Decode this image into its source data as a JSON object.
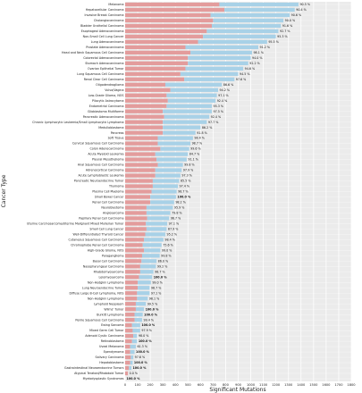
{
  "chart_data": {
    "type": "bar",
    "stacked": true,
    "orientation": "horizontal",
    "xlabel": "Significant Mutations",
    "ylabel": "Cancer Type",
    "xlim": [
      0,
      1800
    ],
    "xticks": [
      0,
      100,
      200,
      300,
      400,
      500,
      600,
      700,
      800,
      900,
      1000,
      1100,
      1200,
      1300,
      1400,
      1500,
      1600,
      1700,
      1800
    ],
    "grid": true,
    "series_colors": [
      "#e39c9c",
      "#a8d1e7"
    ],
    "categories": [
      "Melanoma",
      "Hepatocellular Carcinoma",
      "Invasive Breast Carcinoma",
      "Cholangiocarcinoma",
      "Bladder Urothelial Carcinoma",
      "Esophageal Adenocarcinoma",
      "Non-Small Cell Lung Cancer",
      "Lung Adenocarcinoma",
      "Prostate Adenocarcinoma",
      "Head and Neck Squamous Cell Carcinoma",
      "Colorectal Adenocarcinoma",
      "Stomach Adenocarcinoma",
      "Ovarian Epithelial Tumor",
      "Lung Squamous Cell Carcinoma",
      "Renal Clear Cell Carcinoma",
      "Oligodendroglioma",
      "Vulva/Vagina",
      "Low-Grade Glioma, NOS",
      "Pilocytic Astrocytoma",
      "Endometrial Carcinoma",
      "Glioblastoma Multiforme",
      "Pancreatic Adenocarcinoma",
      "Chronic Lymphocytic Leukemia/Small Lymphocytic Lymphoma",
      "Medulloblastoma",
      "Pancreas",
      "Soft Tissue",
      "Cervical Squamous Cell Carcinoma",
      "Colon Adenocarcinoma",
      "Acute Myeloid Leukemia",
      "Pleural Mesothelioma",
      "Anal Squamous Cell Carcinoma",
      "Adrenocortical Carcinoma",
      "Acute Lymphoblastic Leukemia",
      "Pancreatic Neuroendocrine Tumor",
      "Thymoma",
      "Plasma Cell Myeloma",
      "Small Bowel Cancer",
      "Renal Cell Carcinoma",
      "Neuroblastoma",
      "Angiosarcoma",
      "Papillary Renal Cell Carcinoma",
      "Uterine Carcinosarcoma/Uterine Malignant Mixed Mullerian Tumor",
      "Small Cell Lung Cancer",
      "Well-Differentiated Thyroid Cancer",
      "Cutaneous Squamous Cell Carcinoma",
      "Chromophobe Renal Cell Carcinoma",
      "High-Grade Glioma, NOS",
      "Paraganglioma",
      "Basal Cell Carcinoma",
      "Nasopharyngeal Carcinoma",
      "Rhabdomyosarcoma",
      "Leiomyosarcoma",
      "Non-Hodgkin Lymphoma",
      "Lung Neuroendocrine Tumor",
      "Diffuse Large B-Cell Lymphoma, NOS",
      "Non-Hodgkin Lymphoma",
      "Lymphoid Neoplasm",
      "Wilms' Tumor",
      "Burkitt Lymphoma",
      "Penile Squamous Cell Carcinoma",
      "Ewing Sarcoma",
      "Mixed Germ Cell Tumor",
      "Adenoid Cystic Carcinoma",
      "Retinoblastoma",
      "Uveal Melanoma",
      "Ependymoma",
      "Salivary Carcinoma",
      "Hepatoblastoma",
      "Gastrointestinal Neuroendocrine Tumors",
      "Atypical Teratoid/Rhabdoid Tumor",
      "Myelodysplastic Syndromes"
    ],
    "series": [
      {
        "values": [
          750,
          790,
          680,
          700,
          690,
          650,
          620,
          580,
          480,
          520,
          500,
          500,
          480,
          440,
          470,
          320,
          360,
          330,
          340,
          330,
          300,
          310,
          300,
          300,
          300,
          260,
          260,
          280,
          240,
          250,
          260,
          240,
          240,
          220,
          220,
          210,
          200,
          200,
          170,
          170,
          175,
          165,
          170,
          160,
          150,
          140,
          150,
          135,
          130,
          120,
          120,
          110,
          100,
          100,
          95,
          95,
          85,
          85,
          75,
          75,
          55,
          60,
          65,
          55,
          40,
          40,
          45,
          40,
          30,
          22,
          0
        ]
      },
      {
        "values": [
          630,
          560,
          630,
          560,
          550,
          570,
          580,
          550,
          580,
          490,
          500,
          480,
          460,
          460,
          400,
          450,
          380,
          400,
          380,
          360,
          390,
          360,
          350,
          300,
          260,
          280,
          260,
          230,
          260,
          240,
          200,
          210,
          200,
          210,
          200,
          200,
          205,
          190,
          210,
          190,
          175,
          170,
          160,
          160,
          155,
          150,
          130,
          140,
          120,
          125,
          105,
          105,
          105,
          95,
          100,
          85,
          80,
          65,
          65,
          60,
          65,
          60,
          30,
          40,
          45,
          35,
          20,
          20,
          20,
          0,
          0
        ]
      }
    ],
    "data_labels": [
      "90.5 %",
      "90.4 %",
      "90.6 %",
      "90.0 %",
      "91.6 %",
      "92.7 %",
      "95.3 %",
      "95.5 %",
      "91.2 %",
      "98.1 %",
      "94.0 %",
      "92.2 %",
      "94.6 %",
      "94.5 %",
      "97.6 %",
      "86.6 %",
      "94.2 %",
      "97.1 %",
      "92.4 %",
      "95.3 %",
      "97.5 %",
      "92.4 %",
      "97.7 %",
      "86.2 %",
      "91.8 %",
      "98.4 %",
      "98.7 %",
      "99.6 %",
      "84.7 %",
      "91.1 %",
      "99.8 %",
      "97.9 %",
      "97.3 %",
      "85.5 %",
      "97.4 %",
      "98.7 %",
      "100.0 %",
      "98.2 %",
      "95.9 %",
      "79.8 %",
      "96.7 %",
      "97.1 %",
      "87.9 %",
      "95.2 %",
      "98.4 %",
      "75.6 %",
      "99.0 %",
      "99.8 %",
      "86.0 %",
      "99.2 %",
      "98.7 %",
      "100.0 %",
      "99.0 %",
      "96.7 %",
      "97.1 %",
      "98.1 %",
      "99.5 %",
      "100.0 %",
      "100.0 %",
      "99.4 %",
      "100.0 %",
      "97.9 %",
      "98.0 %",
      "100.0 %",
      "61.3 %",
      "100.0 %",
      "97.6 %",
      "100.0 %",
      "100.0 %",
      "0.0 %",
      "100.0 %"
    ]
  }
}
